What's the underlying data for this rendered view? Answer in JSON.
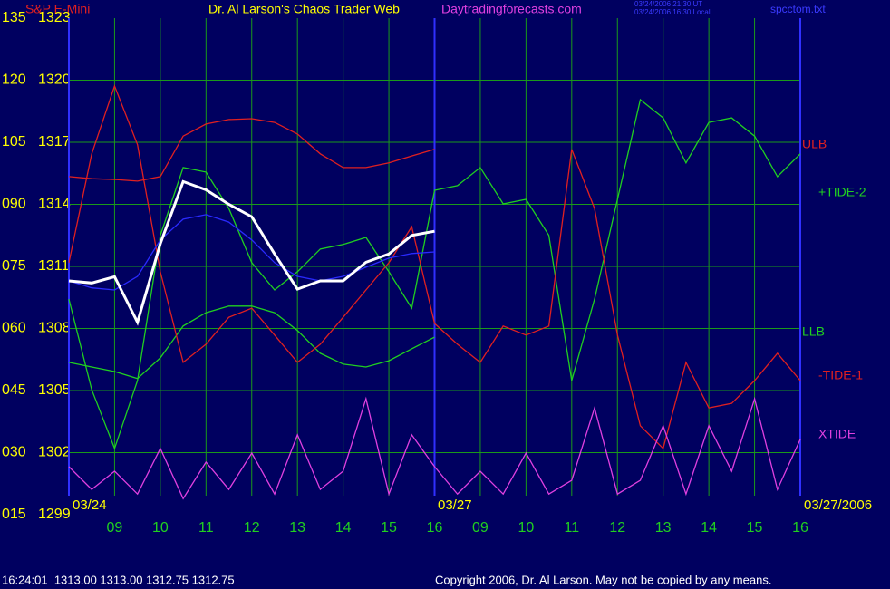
{
  "chart_data": {
    "type": "line",
    "title": "Dr. Al Larson's Chaos Trader Web",
    "symbol": "S&P E-Mini",
    "site": "Daytradingforecasts.com",
    "timestamps": [
      "03/24/2006 21:30 UT",
      "03/24/2006 16:30 Local"
    ],
    "file": "spcctom.txt",
    "date_labels": [
      "03/24",
      "03/27",
      "03/27/2006"
    ],
    "quote": "16:24:01  1313.00 1313.00 1312.75 1312.75",
    "copyright": "Copyright 2006, Dr. Al Larson. May not be copied by any means.",
    "grid": true,
    "xlim": [
      8,
      24
    ],
    "xticks": [
      {
        "value": 9,
        "label": "09"
      },
      10,
      11,
      12,
      13,
      14,
      15,
      16,
      {
        "value": 17,
        "label": "09"
      },
      {
        "value": 18,
        "label": "10"
      },
      {
        "value": 19,
        "label": "11"
      },
      {
        "value": 20,
        "label": "12"
      },
      {
        "value": 21,
        "label": "13"
      },
      {
        "value": 22,
        "label": "14"
      },
      {
        "value": 23,
        "label": "15"
      },
      {
        "value": 24,
        "label": "16"
      }
    ],
    "ylim": [
      15,
      135
    ],
    "yticks": [
      135,
      120,
      105,
      {
        "value": 90,
        "label": "090"
      },
      {
        "value": 75,
        "label": "075"
      },
      {
        "value": 60,
        "label": "060"
      },
      {
        "value": 45,
        "label": "045"
      },
      {
        "value": 30,
        "label": "030"
      },
      {
        "value": 15,
        "label": "015"
      }
    ],
    "y2lim": [
      1299,
      1323
    ],
    "y2ticks": [
      1323,
      1320,
      1317,
      1314,
      1311,
      1308,
      1305,
      1302,
      1299
    ],
    "x": [
      8,
      8.5,
      9,
      9.5,
      10,
      10.5,
      11,
      11.5,
      12,
      12.5,
      13,
      13.5,
      14,
      14.5,
      15,
      15.5,
      16,
      16.5,
      17,
      17.5,
      18,
      18.5,
      19,
      19.5,
      20,
      20.5,
      21,
      21.5,
      22,
      22.5,
      23,
      23.5,
      24
    ],
    "series": [
      {
        "name": "ULB",
        "color": "#e02020",
        "values": [
          96.7,
          96.2,
          96.0,
          95.6,
          96.7,
          106.5,
          109.4,
          110.5,
          110.7,
          109.8,
          107.0,
          102.2,
          98.9,
          98.9,
          100.0,
          101.7,
          103.3,
          null,
          null,
          null,
          null,
          null,
          null,
          null,
          null,
          null,
          null,
          null,
          null,
          null,
          null,
          null,
          null
        ]
      },
      {
        "name": "LLB",
        "color": "#20d020",
        "values": [
          51.8,
          50.7,
          49.6,
          47.9,
          52.9,
          60.6,
          63.8,
          65.4,
          65.4,
          63.8,
          59.5,
          54.0,
          51.4,
          50.7,
          52.2,
          55.1,
          57.9,
          null,
          null,
          null,
          null,
          null,
          null,
          null,
          null,
          null,
          null,
          null,
          null,
          null,
          null,
          null,
          null
        ]
      },
      {
        "name": "+TIDE-2",
        "color": "#20d020",
        "values": [
          67.1,
          45.2,
          31.0,
          47.4,
          82.5,
          98.9,
          97.8,
          89.0,
          75.9,
          69.3,
          73.7,
          79.2,
          80.3,
          82.0,
          73.7,
          64.9,
          93.4,
          94.5,
          98.9,
          90.1,
          91.2,
          82.5,
          47.4,
          67.1,
          91.2,
          115.3,
          110.9,
          100.0,
          109.8,
          110.9,
          106.5,
          96.7,
          102.2
        ]
      },
      {
        "name": "-TIDE-1",
        "color": "#e02020",
        "values": [
          75.9,
          102.2,
          118.6,
          104.4,
          73.7,
          51.8,
          56.2,
          62.7,
          64.9,
          58.4,
          51.8,
          56.2,
          62.7,
          69.3,
          75.9,
          84.6,
          61.2,
          56.2,
          51.8,
          60.6,
          58.4,
          60.6,
          103.3,
          89.0,
          58.4,
          36.5,
          31.0,
          51.8,
          40.8,
          41.9,
          47.4,
          54.0,
          47.4
        ]
      },
      {
        "name": "XTIDE",
        "color": "#e040e0",
        "values": [
          26.6,
          21.1,
          25.5,
          20.0,
          31.0,
          18.9,
          27.7,
          21.1,
          29.9,
          20.0,
          34.3,
          21.1,
          25.5,
          43.0,
          20.0,
          34.3,
          26.6,
          20.0,
          25.5,
          20.0,
          29.9,
          20.0,
          23.3,
          40.8,
          20.0,
          23.3,
          36.5,
          20.0,
          36.5,
          25.5,
          43.0,
          21.1,
          33.2
        ]
      },
      {
        "color": "#2a2aff",
        "values": [
          71.5,
          69.8,
          69.3,
          72.6,
          81.4,
          86.4,
          87.5,
          85.7,
          81.4,
          75.9,
          72.6,
          71.5,
          72.6,
          74.8,
          77.0,
          78.1,
          78.5,
          null,
          null,
          null,
          null,
          null,
          null,
          null,
          null,
          null,
          null,
          null,
          null,
          null,
          null,
          null,
          null
        ]
      },
      {
        "color": "#ffffff",
        "axis": "y2",
        "values": [
          1310.3,
          1310.2,
          1310.5,
          1308.3,
          1312.1,
          1315.1,
          1314.7,
          1314.0,
          1313.4,
          1311.6,
          1309.9,
          1310.3,
          1310.3,
          1311.2,
          1311.6,
          1312.5,
          1312.7,
          null,
          null,
          null,
          null,
          null,
          null,
          null,
          null,
          null,
          null,
          null,
          null,
          null,
          null,
          null,
          null
        ]
      }
    ]
  }
}
